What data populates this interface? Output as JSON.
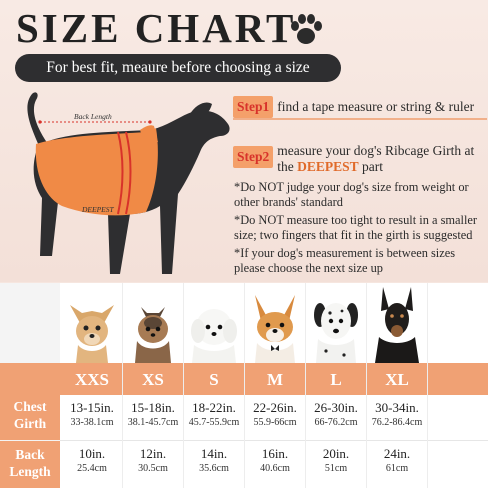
{
  "title": "SIZE CHART",
  "subtitle": "For best fit, meaure before choosing a size",
  "illustration": {
    "back_length_label": "Back Length",
    "deepest_label": "DEEPEST"
  },
  "steps": [
    {
      "badge": "Step1",
      "text": "find a tape measure or string & ruler"
    },
    {
      "badge": "Step2",
      "text": "measure your dog's Ribcage Girth at the ",
      "highlight": "DEEPEST",
      "tail": " part"
    }
  ],
  "notes": [
    "*Do NOT judge your dog's size from weight or other brands' standard",
    "*Do NOT measure too tight to result in a smaller size; two fingers that fit in the girth is suggested",
    "*If your dog's measurement is between sizes please choose the next size up"
  ],
  "table": {
    "row_labels": {
      "chest": "Chest Girth",
      "back": "Back Length"
    },
    "sizes": [
      "XXS",
      "XS",
      "S",
      "M",
      "L",
      "XL"
    ],
    "chest_in": [
      "13-15in.",
      "15-18in.",
      "18-22in.",
      "22-26in.",
      "26-30in.",
      "30-34in."
    ],
    "chest_cm": [
      "33-38.1cm",
      "38.1-45.7cm",
      "45.7-55.9cm",
      "55.9-66cm",
      "66-76.2cm",
      "76.2-86.4cm"
    ],
    "back_in": [
      "10in.",
      "12in.",
      "14in.",
      "16in.",
      "20in.",
      "24in."
    ],
    "back_cm": [
      "25.4cm",
      "30.5cm",
      "35.6cm",
      "40.6cm",
      "51cm",
      "61cm"
    ]
  },
  "colors": {
    "accent": "#f0a174",
    "step_red": "#d8322a",
    "highlight": "#e06a2a",
    "dark": "#2e2e30"
  }
}
